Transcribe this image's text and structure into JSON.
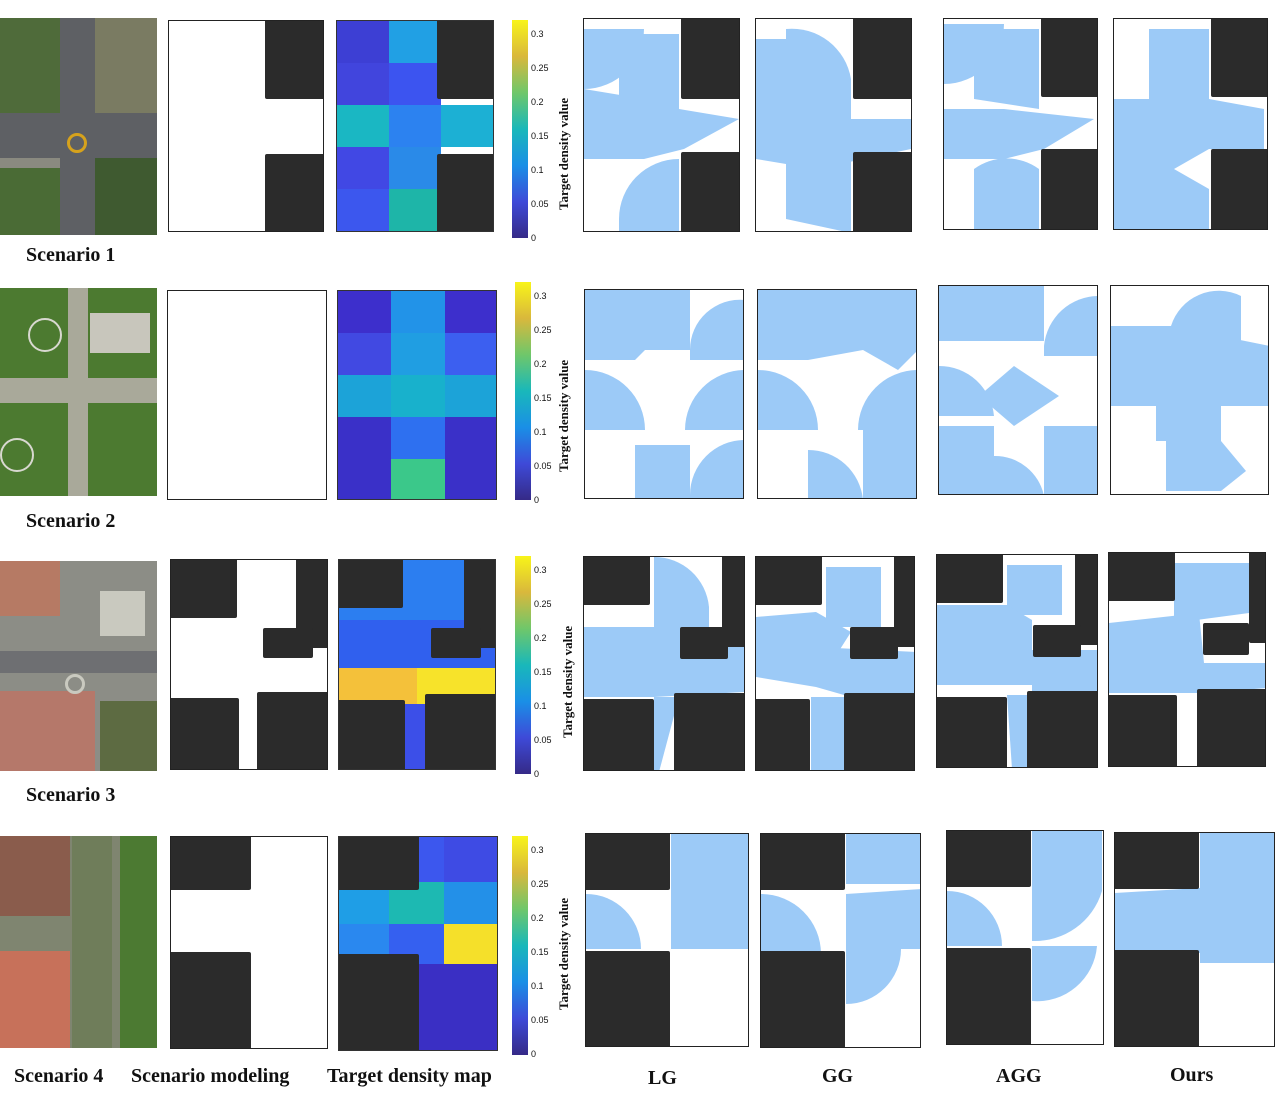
{
  "scenario_labels": [
    "Scenario 1",
    "Scenario 2",
    "Scenario 3",
    "Scenario 4"
  ],
  "column_labels": {
    "modeling": "Scenario modeling",
    "density": "Target density map",
    "lg": "LG",
    "gg": "GG",
    "agg": "AGG",
    "ours": "Ours"
  },
  "colorbar": {
    "label": "Target density value",
    "ticks": [
      "0.3",
      "0.25",
      "0.2",
      "0.15",
      "0.1",
      "0.05",
      "0"
    ]
  },
  "colors": {
    "obstacle": "#2b2b2b",
    "coverage": "#9ccaf7",
    "sensor": "#e0535b"
  }
}
